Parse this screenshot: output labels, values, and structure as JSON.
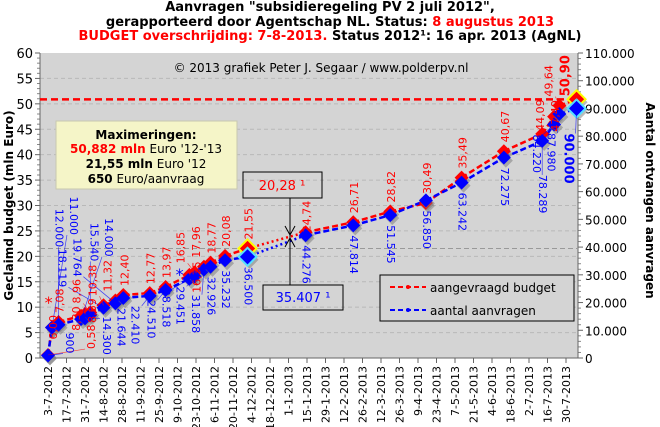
{
  "title": {
    "line1": "Aanvragen \"subsidieregeling  PV 2 juli 2012\",",
    "line2a": "gerapporteerd door Agentschap NL. Status: ",
    "line2b": "8 augustus  2013",
    "line3a": "BUDGET  overschrijding: 7-8-2013.",
    "line3b": " Status 2012¹: 16 apr. 2013 (AgNL)"
  },
  "copyright": "© 2013 grafiek Peter J. Segaar / www.polderpv.nl",
  "maxbox": {
    "heading": "Maximeringen:",
    "l1a": "50,882 mln",
    "l1b": " Euro '12-'13",
    "l2a": "21,55 mln",
    "l2b": " Euro '12",
    "l3a": "650",
    "l3b": " Euro/aanvraag"
  },
  "annotations": {
    "budget2012": "20,28 ¹",
    "count2012": "35.407 ¹",
    "asterisk": "*"
  },
  "colors": {
    "budget": "#ff0000",
    "count": "#0000ff",
    "plot_bg": "#d4d4d4",
    "maxbox_bg": "#f5f5c8"
  },
  "chart_data": {
    "type": "line",
    "ylabel": "Geclaimd budget (mln Euro)",
    "y2label": "Aantal ontvangen aanvragen",
    "ylim": [
      0,
      60
    ],
    "y2lim": [
      0,
      110000
    ],
    "yticks": [
      "0",
      "5",
      "10",
      "15",
      "20",
      "25",
      "30",
      "35",
      "40",
      "45",
      "50",
      "55",
      "60"
    ],
    "y2ticks": [
      "0",
      "10.000",
      "20.000",
      "30.000",
      "40.000",
      "50.000",
      "60.000",
      "70.000",
      "80.000",
      "90.000",
      "100.000",
      "110.000"
    ],
    "xticks": [
      "3-7-2012",
      "17-7-2012",
      "31-7-2012",
      "14-8-2012",
      "28-8-2012",
      "11-9-2012",
      "25-9-2012",
      "9-10-2012",
      "23-10-2012",
      "6-11-2012",
      "20-11-2012",
      "4-12-2012",
      "18-12-2012",
      "1-1-2013",
      "15-1-2013",
      "29-1-2013",
      "12-2-2013",
      "26-2-2013",
      "12-3-2013",
      "26-3-2013",
      "9-4-2013",
      "23-4-2013",
      "7-5-2013",
      "21-5-2013",
      "4-6-2013",
      "18-6-2013",
      "2-7-2013",
      "16-7-2013",
      "30-7-2013"
    ],
    "reference_lines": {
      "budget_max": 50.882,
      "budget_2012": 21.55
    },
    "legend": {
      "position": "bottom-right",
      "budget": "aangevraagd budget",
      "count": "aantal aanvragen"
    },
    "points": [
      {
        "day": 0,
        "budget": 0.58,
        "bl": "0,58",
        "count": 900,
        "cl": "900"
      },
      {
        "day": 3,
        "budget": 6.0,
        "bl": "6,00",
        "count": 11000,
        "cl": "11.000"
      },
      {
        "day": 8,
        "budget": 7.08,
        "bl": "7,08",
        "count": 12000,
        "cl": "12.000"
      },
      {
        "day": 25,
        "budget": 8.3,
        "bl": "8,30",
        "count": 14000,
        "cl": "14.000"
      },
      {
        "day": 28,
        "budget": 8.69,
        "bl": "8,69",
        "count": 14300,
        "cl": "14.300"
      },
      {
        "day": 32,
        "budget": 8.96,
        "bl": "8,96",
        "count": 15540,
        "cl": "15.540"
      },
      {
        "day": 42,
        "budget": 10.38,
        "bl": "10,38",
        "count": 18119,
        "cl": "18.119"
      },
      {
        "day": 51,
        "budget": 11.32,
        "bl": "11,32",
        "count": 19764,
        "cl": "19.764"
      },
      {
        "day": 57,
        "budget": 12.4,
        "bl": "12,40",
        "count": 21644,
        "cl": "21.644"
      },
      {
        "day": 77,
        "budget": 12.77,
        "bl": "12,77",
        "count": 22410,
        "cl": "22.410"
      },
      {
        "day": 89,
        "budget": 13.97,
        "bl": "13,97",
        "count": 24510,
        "cl": "24.510"
      },
      {
        "day": 107,
        "budget": 16.35,
        "bl": "16,35",
        "count": 28518,
        "cl": "28.518"
      },
      {
        "day": 111,
        "budget": 16.85,
        "bl": "16,85",
        "count": 29451,
        "cl": "29.451"
      },
      {
        "day": 118,
        "budget": 17.96,
        "bl": "17,96",
        "count": 31858,
        "cl": "31.858"
      },
      {
        "day": 123,
        "budget": 18.77,
        "bl": "18,77",
        "count": 32926,
        "cl": "32.926"
      },
      {
        "day": 134,
        "budget": 20.08,
        "bl": "20,08",
        "count": 35232,
        "cl": "35.232"
      },
      {
        "day": 151,
        "budget": 21.55,
        "bl": "21,55",
        "count": 36500,
        "cl": "36.500",
        "hl": true
      },
      {
        "day": 195,
        "budget": 24.74,
        "bl": "24,74",
        "count": 44276,
        "cl": "44.276"
      },
      {
        "day": 231,
        "budget": 26.71,
        "bl": "26,71",
        "count": 47814,
        "cl": "47.814"
      },
      {
        "day": 259,
        "budget": 28.82,
        "bl": "28,82",
        "count": 51545,
        "cl": "51.545"
      },
      {
        "day": 286,
        "budget": 30.49,
        "bl": "30,49",
        "count": 56850,
        "cl": "56.850"
      },
      {
        "day": 313,
        "budget": 35.49,
        "bl": "35,49",
        "count": 63242,
        "cl": "63.242"
      },
      {
        "day": 345,
        "budget": 40.67,
        "bl": "40,67",
        "count": 72275,
        "cl": "72.275"
      },
      {
        "day": 374,
        "budget": 44.09,
        "bl": "44,09",
        "count": 78289,
        "cl": "78.289"
      },
      {
        "day": 383,
        "budget": 47.49,
        "bl": "47,49",
        "count": 84220,
        "cl": "84.220"
      },
      {
        "day": 387,
        "budget": 49.64,
        "bl": "49,64",
        "count": 87980,
        "cl": "87.980"
      },
      {
        "day": 400,
        "budget": 50.9,
        "bl": "50,90",
        "count": 90000,
        "cl": "90.000",
        "hl": true,
        "final": true
      }
    ]
  }
}
